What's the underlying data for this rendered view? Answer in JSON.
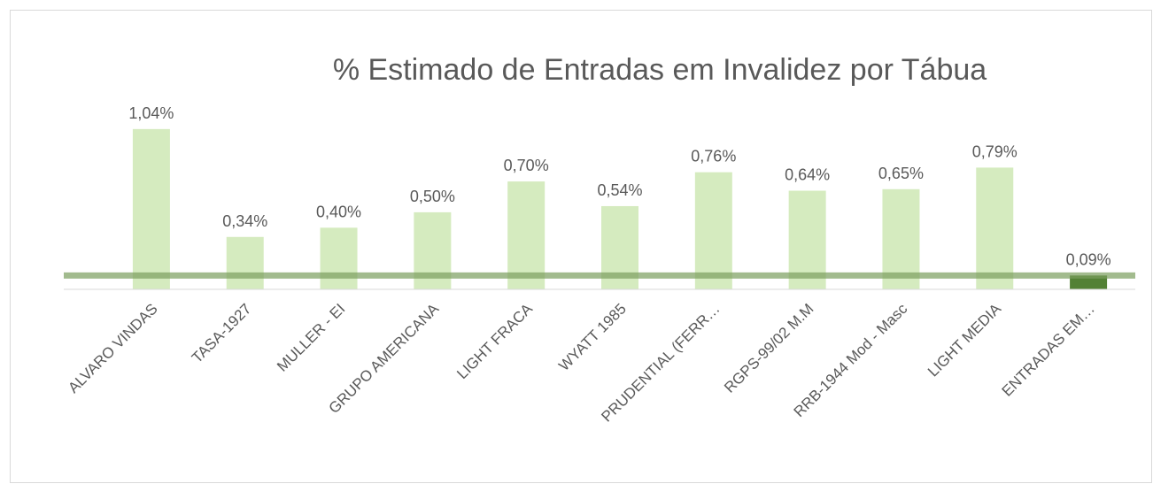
{
  "chart_data": {
    "type": "bar",
    "title": "% Estimado de Entradas em Invalidez por Tábua",
    "categories": [
      "ALVARO VINDAS",
      "TASA-1927",
      "MULLER - EI",
      "GRUPO AMERICANA",
      "LIGHT FRACA",
      "WYATT 1985",
      "PRUDENTIAL (FERR…",
      "RGPS-99/02 M.M",
      "RRB-1944 Mod - Masc",
      "LIGHT MEDIA",
      "ENTRADAS EM…"
    ],
    "values": [
      1.04,
      0.34,
      0.4,
      0.5,
      0.7,
      0.54,
      0.76,
      0.64,
      0.65,
      0.79,
      0.09
    ],
    "value_labels": [
      "1,04%",
      "0,34%",
      "0,40%",
      "0,50%",
      "0,70%",
      "0,54%",
      "0,76%",
      "0,64%",
      "0,65%",
      "0,79%",
      "0,09%"
    ],
    "colors": [
      "#d5ebbf",
      "#d5ebbf",
      "#d5ebbf",
      "#d5ebbf",
      "#d5ebbf",
      "#d5ebbf",
      "#d5ebbf",
      "#d5ebbf",
      "#d5ebbf",
      "#d5ebbf",
      "#538135"
    ],
    "reference_line": 0.09,
    "reference_color": "#7a9e5e",
    "ylim": [
      0,
      1.2
    ]
  }
}
